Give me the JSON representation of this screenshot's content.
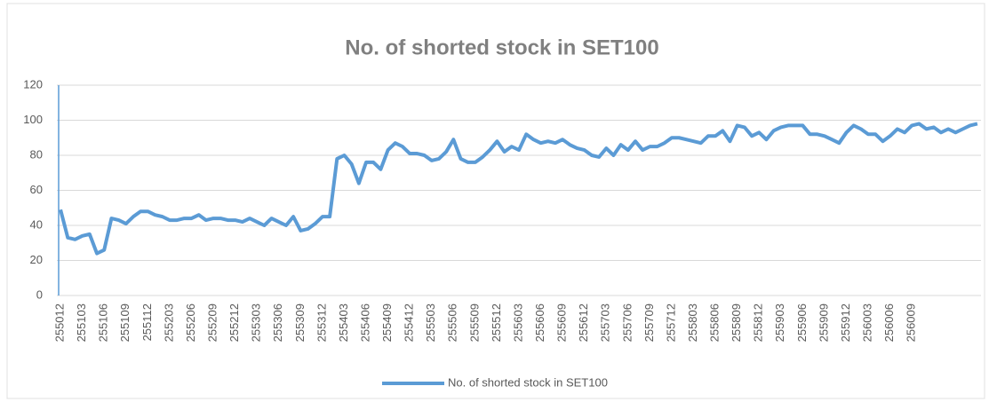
{
  "chart_data": {
    "type": "line",
    "title": "No. of shorted stock in SET100",
    "categories": [
      "255012",
      null,
      null,
      "255103",
      null,
      null,
      "255106",
      null,
      null,
      "255109",
      null,
      null,
      "255112",
      null,
      null,
      "255203",
      null,
      null,
      "255206",
      null,
      null,
      "255209",
      null,
      null,
      "255212",
      null,
      null,
      "255303",
      null,
      null,
      "255306",
      null,
      null,
      "255309",
      null,
      null,
      "255312",
      null,
      null,
      "255403",
      null,
      null,
      "255406",
      null,
      null,
      "255409",
      null,
      null,
      "255412",
      null,
      null,
      "255503",
      null,
      null,
      "255506",
      null,
      null,
      "255509",
      null,
      null,
      "255512",
      null,
      null,
      "255603",
      null,
      null,
      "255606",
      null,
      null,
      "255609",
      null,
      null,
      "255612",
      null,
      null,
      "255703",
      null,
      null,
      "255706",
      null,
      null,
      "255709",
      null,
      null,
      "255712",
      null,
      null,
      "255803",
      null,
      null,
      "255806",
      null,
      null,
      "255809",
      null,
      null,
      "255812",
      null,
      null,
      "255903",
      null,
      null,
      "255906",
      null,
      null,
      "255909",
      null,
      null,
      "255912",
      null,
      null,
      "256003",
      null,
      null,
      "256006",
      null,
      null,
      "256009",
      null,
      null,
      null,
      null,
      null,
      null,
      null,
      null,
      null
    ],
    "series": [
      {
        "name": "No. of shorted stock in SET100",
        "color": "#5b9bd5",
        "values": [
          49,
          33,
          32,
          34,
          35,
          24,
          26,
          44,
          43,
          41,
          45,
          48,
          48,
          46,
          45,
          43,
          43,
          44,
          44,
          46,
          43,
          44,
          44,
          43,
          43,
          42,
          44,
          42,
          40,
          44,
          42,
          40,
          45,
          37,
          38,
          41,
          45,
          45,
          78,
          80,
          75,
          64,
          76,
          76,
          72,
          83,
          87,
          85,
          81,
          81,
          80,
          77,
          78,
          82,
          89,
          78,
          76,
          76,
          79,
          83,
          88,
          82,
          85,
          83,
          92,
          89,
          87,
          88,
          87,
          89,
          86,
          84,
          83,
          80,
          79,
          84,
          80,
          86,
          83,
          88,
          83,
          85,
          85,
          87,
          90,
          90,
          89,
          88,
          87,
          91,
          91,
          94,
          88,
          97,
          96,
          91,
          93,
          89,
          94,
          96,
          97,
          97,
          97,
          92,
          92,
          91,
          89,
          87,
          93,
          97,
          95,
          92,
          92,
          88,
          91,
          95,
          93,
          97,
          98,
          95,
          96,
          93,
          95,
          93,
          95,
          97,
          98
        ]
      }
    ],
    "ylim": [
      0,
      120
    ],
    "yticks": [
      0,
      20,
      40,
      60,
      80,
      100,
      120
    ],
    "grid": true,
    "legend": "bottom"
  }
}
